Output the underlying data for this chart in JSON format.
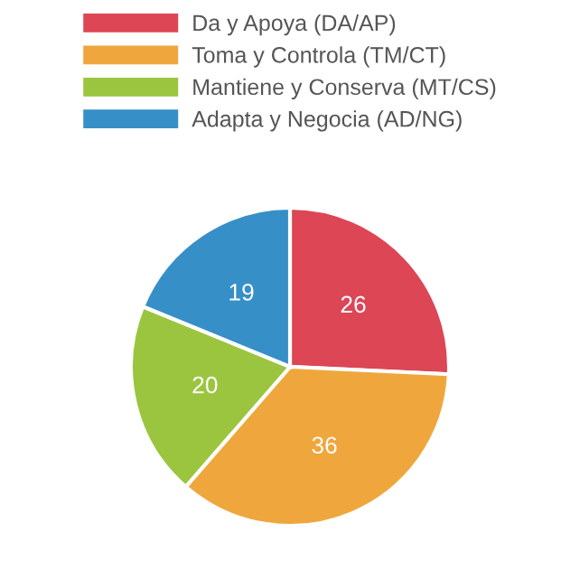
{
  "chart_data": {
    "type": "pie",
    "categories": [
      "Da y Apoya (DA/AP)",
      "Toma y Controla (TM/CT)",
      "Mantiene y Conserva (MT/CS)",
      "Adapta y Negocia (AD/NG)"
    ],
    "values": [
      26,
      36,
      20,
      19
    ],
    "colors": [
      "#dc4655",
      "#efa73d",
      "#9bc53f",
      "#378fc7"
    ],
    "data_labels": true,
    "legend": "top"
  }
}
